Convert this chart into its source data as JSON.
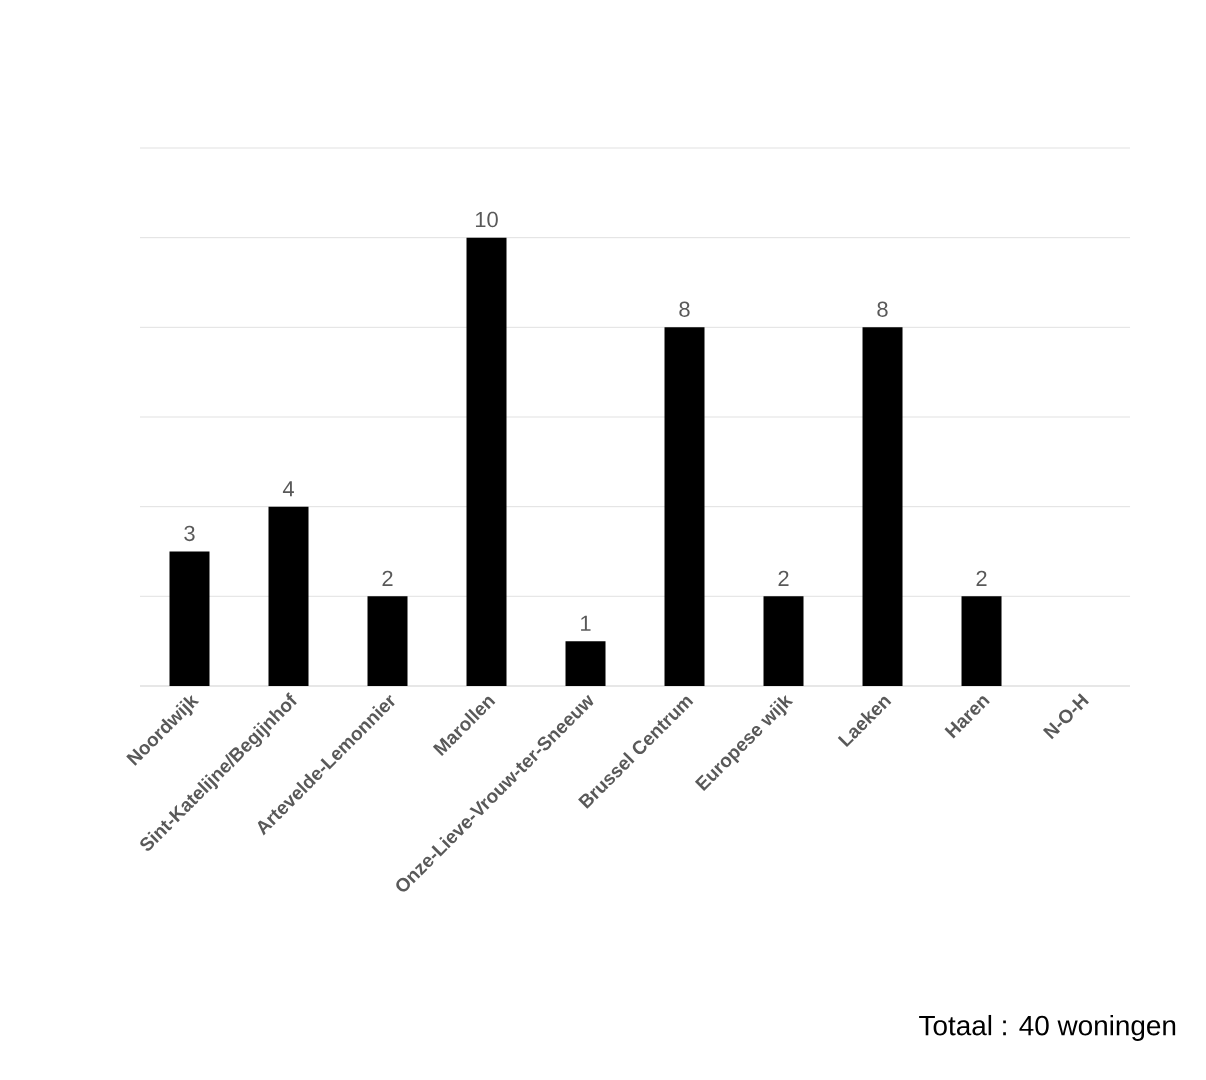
{
  "chart_data": {
    "type": "bar",
    "categories": [
      "Noordwijk",
      "Sint-Katelijne/Begijnhof",
      "Artevelde-Lemonnier",
      "Marollen",
      "Onze-Lieve-Vrouw-ter-Sneeuw",
      "Brussel Centrum",
      "Europese wijk",
      "Laeken",
      "Haren",
      "N-O-H"
    ],
    "values": [
      3,
      4,
      2,
      10,
      1,
      8,
      2,
      8,
      2,
      null
    ],
    "value_labels": [
      "3",
      "4",
      "2",
      "10",
      "1",
      "8",
      "2",
      "8",
      "2",
      null
    ],
    "color": "#000000",
    "ylim": [
      0,
      12
    ],
    "yticks": [
      {
        "value": 0,
        "label": null
      },
      {
        "value": 2,
        "label": null
      },
      {
        "value": 4,
        "label": null
      },
      {
        "value": 6,
        "label": null
      },
      {
        "value": 8,
        "label": null
      },
      {
        "value": 10,
        "label": null
      },
      {
        "value": 12,
        "label": null
      }
    ],
    "tick_labels": "x",
    "grid": "y",
    "annotations": [
      "Totaal : 40 woningen"
    ]
  }
}
